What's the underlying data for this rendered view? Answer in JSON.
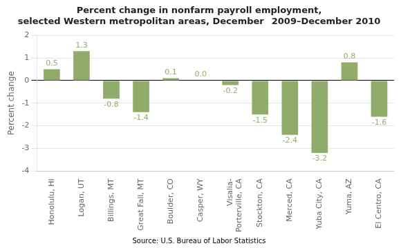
{
  "chart_data": {
    "type": "bar",
    "title": "Percent change in nonfarm payroll employment,\nselected Western metropolitan areas, December  2009–December 2010",
    "categories": [
      "Honolulu, HI",
      "Logan, UT",
      "Billings, MT",
      "Great Fall, MT",
      "Boulder, CO",
      "Casper, WY",
      "Visalia-\nPorterville, CA",
      "Stockton, CA",
      "Merced, CA",
      "Yuba City, CA",
      "Yuma, AZ",
      "El Centro, CA"
    ],
    "values": [
      0.5,
      1.3,
      -0.8,
      -1.4,
      0.1,
      0.0,
      -0.2,
      -1.5,
      -2.4,
      -3.2,
      0.8,
      -1.6
    ],
    "value_labels": [
      "0.5",
      "1.3",
      "-0.8",
      "-1.4",
      "0.1",
      "0.0",
      "-0.2",
      "-1.5",
      "-2.4",
      "-3.2",
      "0.8",
      "-1.6"
    ],
    "data_labels": true,
    "color": "#8fac6b",
    "ylabel": "Percent change",
    "ylim": [
      -4,
      2
    ],
    "yticks": [
      -4,
      -3,
      -2,
      -1,
      0,
      1,
      2
    ],
    "grid": true,
    "source": "Source: U.S. Bureau of Labor Statistics"
  }
}
